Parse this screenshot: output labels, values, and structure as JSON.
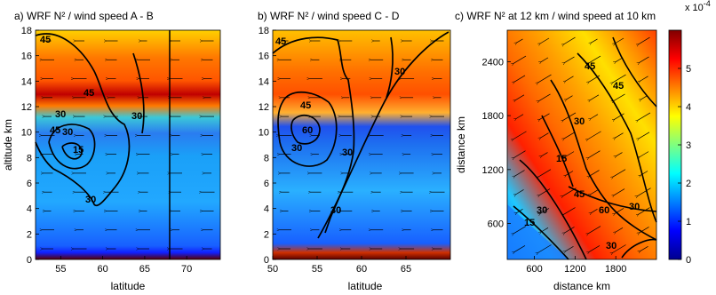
{
  "chart_data": [
    {
      "type": "heatmap",
      "title": "a) WRF N² / wind speed  A - B",
      "xlabel": "latitude",
      "ylabel": "altitude km",
      "xlim": [
        52,
        74
      ],
      "ylim": [
        0,
        18
      ],
      "xticks": [
        55,
        60,
        65,
        70
      ],
      "yticks": [
        0,
        2,
        4,
        6,
        8,
        10,
        12,
        14,
        16,
        18
      ],
      "contour_labels": [
        "45",
        "45",
        "30",
        "30",
        "30",
        "15",
        "30",
        "45"
      ],
      "vertical_line_x": 68,
      "colormap": "jet"
    },
    {
      "type": "heatmap",
      "title": "b) WRF N² / wind speed  C - D",
      "xlabel": "latitude",
      "ylabel": "",
      "xlim": [
        50,
        70
      ],
      "ylim": [
        0,
        18
      ],
      "xticks": [
        50,
        55,
        60,
        65
      ],
      "yticks": [
        0,
        2,
        4,
        6,
        8,
        10,
        12,
        14,
        16,
        18
      ],
      "contour_labels": [
        "45",
        "45",
        "60",
        "30",
        "30",
        "30",
        "30"
      ],
      "colormap": "jet"
    },
    {
      "type": "heatmap",
      "title": "c) WRF N²  at 12 km / wind speed  at 10 km",
      "xlabel": "distance km",
      "ylabel": "distance km",
      "xlim": [
        200,
        2400
      ],
      "ylim": [
        200,
        2750
      ],
      "xticks": [
        600,
        1200,
        1800
      ],
      "yticks": [
        600,
        1200,
        1800,
        2400
      ],
      "contour_labels": [
        "45",
        "30",
        "15",
        "45",
        "60",
        "30",
        "30",
        "15",
        "30",
        "45"
      ],
      "colormap": "jet"
    }
  ],
  "colorbar": {
    "exponent_label": "x 10",
    "exponent": "-4",
    "range": [
      0,
      6
    ],
    "ticks": [
      "0",
      "1",
      "2",
      "3",
      "4",
      "5"
    ]
  }
}
